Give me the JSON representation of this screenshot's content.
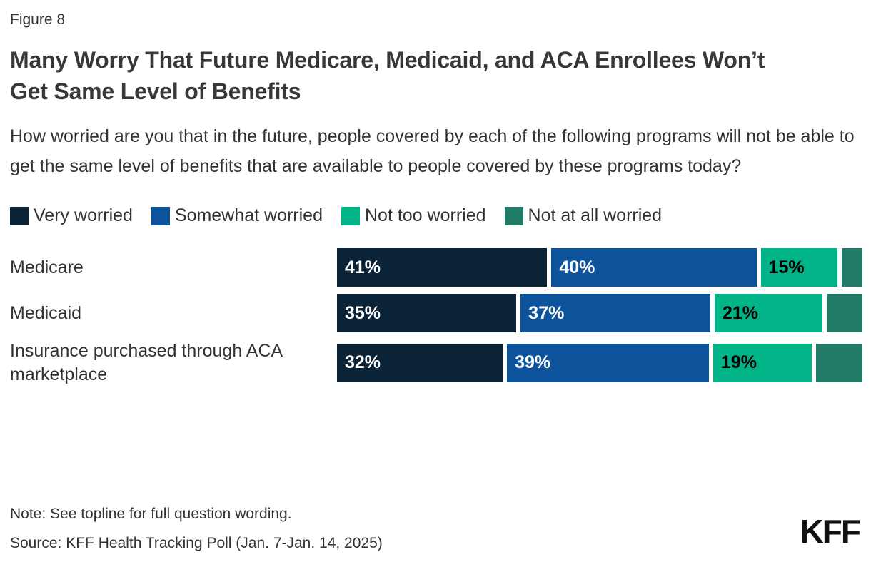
{
  "figure_label": "Figure 8",
  "title": "Many Worry That Future Medicare, Medicaid, and ACA Enrollees Won’t Get Same Level of Benefits",
  "question": "How worried are you that in the future, people covered by each of the following programs will not be able to get the same level of benefits that are available to people covered by these programs today?",
  "colors": {
    "very_worried": "#0b2337",
    "somewhat_worried": "#0e549c",
    "not_too_worried": "#00b487",
    "not_at_all_worried": "#217a66",
    "label_on_dark": "#ffffff",
    "label_on_light": "#000000"
  },
  "legend": {
    "items": [
      {
        "label": "Very worried",
        "color": "#0b2337"
      },
      {
        "label": "Somewhat worried",
        "color": "#0e549c"
      },
      {
        "label": "Not too worried",
        "color": "#00b487"
      },
      {
        "label": "Not at all worried",
        "color": "#217a66"
      }
    ]
  },
  "chart_data": {
    "type": "bar",
    "stacked": true,
    "orientation": "horizontal",
    "label_suffix": "%",
    "categories": [
      "Medicare",
      "Medicaid",
      "Insurance purchased through ACA marketplace"
    ],
    "series": [
      {
        "name": "Very worried",
        "color": "#0b2337",
        "values": [
          41,
          35,
          32
        ],
        "show_labels": true,
        "label_color": "#ffffff"
      },
      {
        "name": "Somewhat worried",
        "color": "#0e549c",
        "values": [
          40,
          37,
          39
        ],
        "show_labels": true,
        "label_color": "#ffffff"
      },
      {
        "name": "Not too worried",
        "color": "#00b487",
        "values": [
          15,
          21,
          19
        ],
        "show_labels": true,
        "label_color": "#000000"
      },
      {
        "name": "Not at all worried",
        "color": "#217a66",
        "values": [
          4,
          7,
          9
        ],
        "show_labels": false,
        "label_color": "#ffffff"
      }
    ],
    "legend_position": "top",
    "grid": false,
    "axis_labels_visible": false
  },
  "note": "Note: See topline for full question wording.",
  "source": "Source: KFF Health Tracking Poll (Jan. 7-Jan. 14, 2025)",
  "logo_text": "KFF"
}
